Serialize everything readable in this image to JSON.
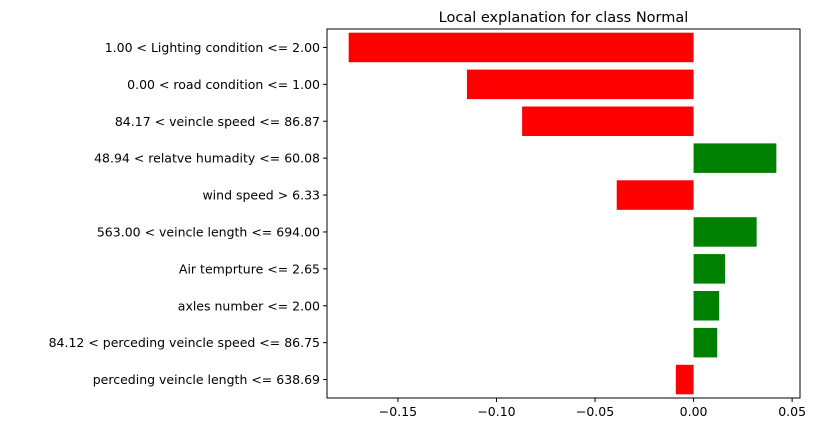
{
  "chart_data": {
    "type": "bar",
    "orientation": "horizontal",
    "title": "Local explanation for class Normal",
    "xlabel": "",
    "ylabel": "",
    "categories": [
      "1.00 < Lighting condition <= 2.00",
      "0.00 < road condition <= 1.00",
      "84.17 < veincle speed <= 86.87",
      "48.94 < relatve humadity <= 60.08",
      "wind speed > 6.33",
      "563.00 < veincle length <= 694.00",
      "Air temprture <= 2.65",
      "axles number <= 2.00",
      "84.12 < perceding veincle speed <= 86.75",
      "perceding veincle length <= 638.69"
    ],
    "values": [
      -0.175,
      -0.115,
      -0.087,
      0.042,
      -0.039,
      0.032,
      0.016,
      0.013,
      0.012,
      -0.009
    ],
    "xlim": [
      -0.186,
      0.054
    ],
    "xticks": [
      -0.15,
      -0.1,
      -0.05,
      0.0,
      0.05
    ],
    "xtick_labels": [
      "−0.15",
      "−0.10",
      "−0.05",
      "0.00",
      "0.05"
    ],
    "colors": {
      "positive": "#008000",
      "negative": "#ff0000"
    },
    "grid": false,
    "legend": "none"
  }
}
